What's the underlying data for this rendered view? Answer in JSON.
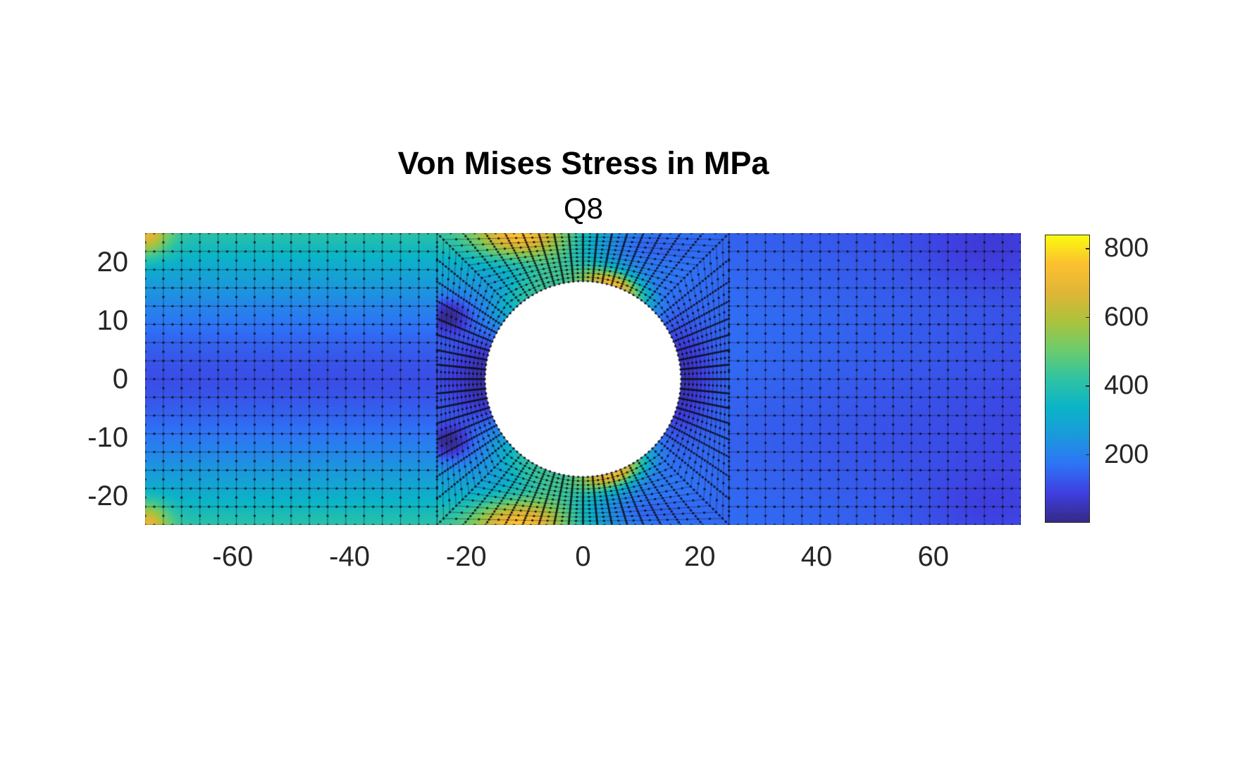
{
  "figure": {
    "title": "Von Mises Stress in MPa",
    "subtitle": "Q8"
  },
  "axes": {
    "xticks": [
      {
        "label": "-60",
        "value": -60
      },
      {
        "label": "-40",
        "value": -40
      },
      {
        "label": "-20",
        "value": -20
      },
      {
        "label": "0",
        "value": 0
      },
      {
        "label": "20",
        "value": 20
      },
      {
        "label": "40",
        "value": 40
      },
      {
        "label": "60",
        "value": 60
      }
    ],
    "yticks": [
      {
        "label": "20",
        "value": 20
      },
      {
        "label": "10",
        "value": 10
      },
      {
        "label": "0",
        "value": 0
      },
      {
        "label": "-10",
        "value": -10
      },
      {
        "label": "-20",
        "value": -20
      }
    ]
  },
  "colorbar": {
    "ticks": [
      {
        "label": "800",
        "value": 800
      },
      {
        "label": "600",
        "value": 600
      },
      {
        "label": "400",
        "value": 400
      },
      {
        "label": "200",
        "value": 200
      }
    ],
    "colormap": "parula",
    "stops": [
      "#352a87",
      "#3f3ee0",
      "#2e73f6",
      "#1a99dc",
      "#0bb4c7",
      "#2fc3a3",
      "#6ccc6c",
      "#acc23c",
      "#e0b536",
      "#fcc030",
      "#f9fb0e"
    ]
  },
  "chart_data": {
    "type": "heatmap",
    "title": "Von Mises Stress in MPa",
    "subtitle": "Q8",
    "xlabel": "",
    "ylabel": "",
    "xlim": [
      -75,
      75
    ],
    "ylim": [
      -25,
      25
    ],
    "aspect": "equal",
    "grid": false,
    "colorbar": {
      "position": "right",
      "range": [
        0,
        840
      ],
      "ticks": [
        200,
        400,
        600,
        800
      ],
      "label": ""
    },
    "geometry": {
      "plate": {
        "x": [
          -75,
          75
        ],
        "y": [
          -25,
          25
        ]
      },
      "hole": {
        "center": [
          0,
          0
        ],
        "radius": 16.8
      },
      "mapped_region": {
        "x": [
          -25,
          25
        ],
        "y": [
          -25,
          25
        ]
      },
      "mesh": "Q8 quadrilateral (8-node) elements, structured 16x16 grids on left/right regions, radial mesh around hole"
    },
    "field_features": [
      {
        "description": "background left region",
        "x_range": [
          -75,
          -25
        ],
        "value_approx": 350
      },
      {
        "description": "low band along centerline left region",
        "x_range": [
          -75,
          -25
        ],
        "y": 0,
        "value_approx": 120
      },
      {
        "description": "left corners (top & bottom)",
        "points": [
          [
            -75,
            25
          ],
          [
            -75,
            -25
          ]
        ],
        "value_approx": 650
      },
      {
        "description": "top/bottom edge hotspots",
        "points": [
          [
            -11,
            25
          ],
          [
            -11,
            -25
          ]
        ],
        "value_approx": 700
      },
      {
        "description": "hole rim hotspots",
        "points": [
          [
            6,
            16.5
          ],
          [
            6,
            -16.5
          ]
        ],
        "value_approx": 720
      },
      {
        "description": "dark spots left of hole",
        "points": [
          [
            -24,
            11
          ],
          [
            -24,
            -11
          ]
        ],
        "value_approx": 60
      },
      {
        "description": "right region background",
        "x_range": [
          25,
          75
        ],
        "value_approx": 120
      }
    ]
  }
}
